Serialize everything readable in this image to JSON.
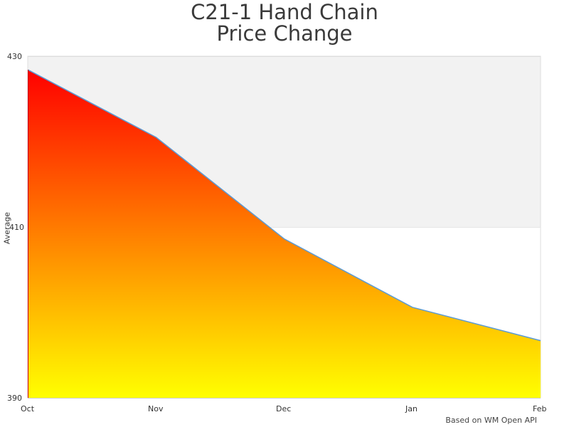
{
  "chart_data": {
    "type": "area",
    "title": "C21-1 Hand Chain Price Change",
    "title_lines": [
      "C21-1 Hand Chain",
      "Price Change"
    ],
    "xlabel": "",
    "ylabel": "Average",
    "categories": [
      "Oct",
      "Nov",
      "Dec",
      "Jan",
      "Feb"
    ],
    "series": [
      {
        "name": "Average",
        "values": [
          428.4,
          420.5,
          408.6,
          400.6,
          396.7
        ]
      }
    ],
    "ylim": [
      390,
      430
    ],
    "yticks": [
      "390",
      "410",
      "430"
    ],
    "grid": false,
    "plot_bands": [
      {
        "from": 410,
        "to": 430,
        "color": "#f2f2f2"
      }
    ],
    "fill_gradient": {
      "top": "#ff0000",
      "bottom": "#ffff00"
    },
    "line_color": "#5b9bd5",
    "credits": "Based on WM Open API"
  }
}
